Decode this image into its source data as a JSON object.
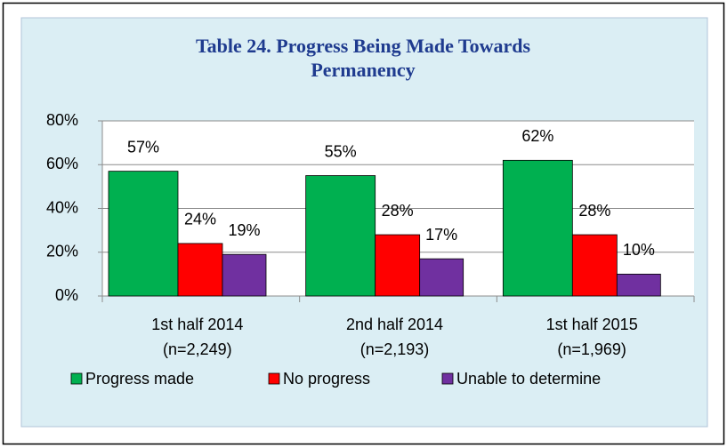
{
  "chart_data": {
    "type": "bar",
    "title": "Table 24. Progress Being Made Towards Permanency",
    "categories": [
      [
        "1st half 2014",
        "(n=2,249)"
      ],
      [
        "2nd half 2014",
        "(n=2,193)"
      ],
      [
        "1st half 2015",
        "(n=1,969)"
      ]
    ],
    "series": [
      {
        "name": "Progress made",
        "color": "#00b050",
        "values": [
          57,
          55,
          62
        ],
        "value_labels": [
          "57%",
          "55%",
          "62%"
        ]
      },
      {
        "name": "No progress",
        "color": "#ff0000",
        "values": [
          24,
          28,
          28
        ],
        "value_labels": [
          "24%",
          "28%",
          "28%"
        ]
      },
      {
        "name": "Unable to determine",
        "color": "#7030a0",
        "values": [
          19,
          17,
          10
        ],
        "value_labels": [
          "19%",
          "17%",
          "10%"
        ]
      }
    ],
    "ylim": [
      0,
      80
    ],
    "yticks": [
      {
        "value": 0,
        "label": "0%"
      },
      {
        "value": 20,
        "label": "20%"
      },
      {
        "value": 40,
        "label": "40%"
      },
      {
        "value": 60,
        "label": "60%"
      },
      {
        "value": 80,
        "label": "80%"
      }
    ],
    "grid": true,
    "legend": "bottom"
  }
}
